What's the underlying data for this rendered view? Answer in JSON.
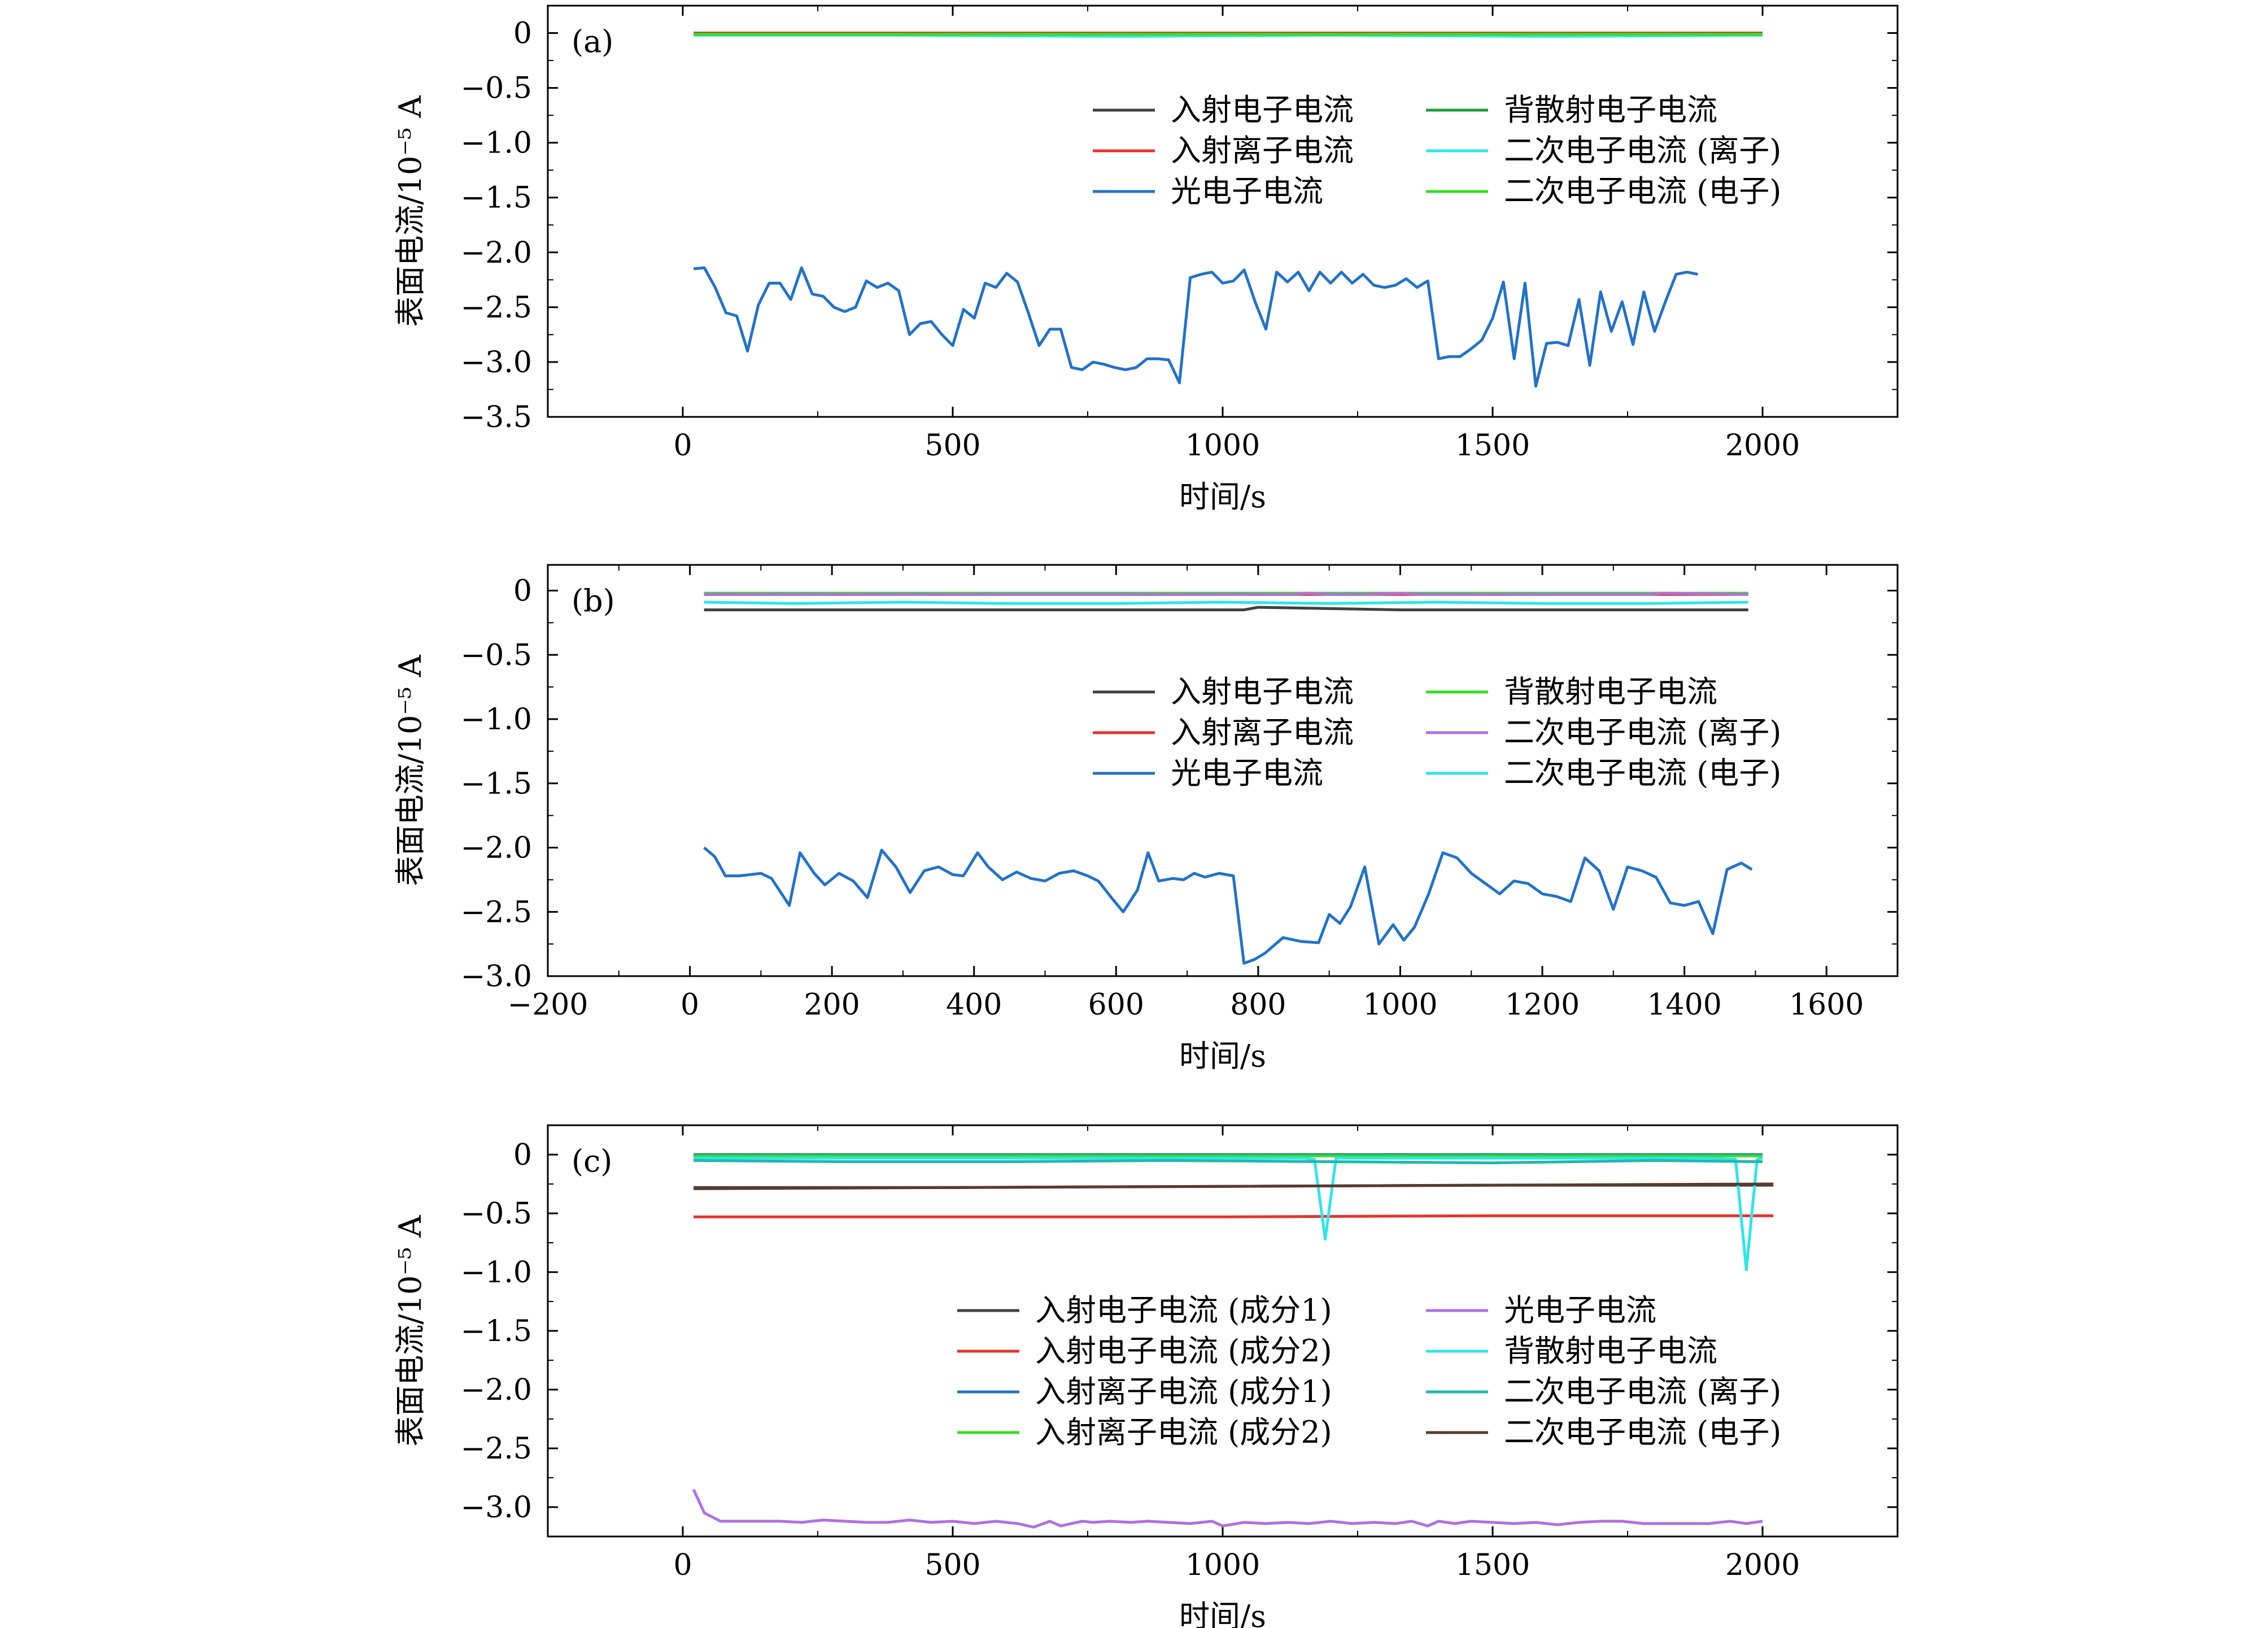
{
  "chart_data": [
    {
      "panel": "(a)",
      "type": "line",
      "xlabel": "时间/s",
      "ylabel": "表面电流/10⁻⁵ A",
      "xlim": [
        -250,
        2250
      ],
      "ylim": [
        -3.5,
        0.25
      ],
      "xticks": [
        0,
        500,
        1000,
        1500,
        2000
      ],
      "xtick_labels": [
        "0",
        "500",
        "1000",
        "1500",
        "2000"
      ],
      "yticks": [
        0,
        -0.5,
        -1.0,
        -1.5,
        -2.0,
        -2.5,
        -3.0,
        -3.5
      ],
      "ytick_labels": [
        "0",
        "−0.5",
        "−1.0",
        "−1.5",
        "−2.0",
        "−2.5",
        "−3.0",
        "−3.5"
      ],
      "legend_position": "upper-right",
      "series": [
        {
          "name": "入射电子电流",
          "color": "#404040",
          "x": [
            20,
            500,
            1000,
            1500,
            2000
          ],
          "values": [
            0,
            0,
            0,
            0,
            0
          ]
        },
        {
          "name": "入射离子电流",
          "color": "#e8322b",
          "x": [
            20,
            500,
            1000,
            1500,
            2000
          ],
          "values": [
            0,
            0,
            0,
            0,
            0
          ]
        },
        {
          "name": "光电子电流",
          "color": "#2272c8",
          "x": [
            20,
            40,
            60,
            80,
            100,
            120,
            140,
            160,
            180,
            200,
            220,
            240,
            260,
            280,
            300,
            320,
            340,
            360,
            380,
            400,
            420,
            440,
            460,
            480,
            500,
            520,
            540,
            560,
            580,
            600,
            620,
            640,
            660,
            680,
            700,
            720,
            740,
            760,
            780,
            800,
            820,
            840,
            860,
            880,
            900,
            920,
            940,
            960,
            980,
            1000,
            1020,
            1040,
            1060,
            1080,
            1100,
            1120,
            1140,
            1160,
            1180,
            1200,
            1220,
            1240,
            1260,
            1280,
            1300,
            1320,
            1340,
            1360,
            1380,
            1400,
            1420,
            1440,
            1460,
            1480,
            1500,
            1520,
            1540,
            1560,
            1580,
            1600,
            1620,
            1640,
            1660,
            1680,
            1700,
            1720,
            1740,
            1760,
            1780,
            1800,
            1820,
            1840,
            1860,
            1880
          ],
          "values": [
            -2.15,
            -2.14,
            -2.32,
            -2.55,
            -2.58,
            -2.9,
            -2.48,
            -2.28,
            -2.28,
            -2.43,
            -2.14,
            -2.38,
            -2.4,
            -2.5,
            -2.54,
            -2.5,
            -2.26,
            -2.32,
            -2.28,
            -2.35,
            -2.75,
            -2.65,
            -2.63,
            -2.75,
            -2.85,
            -2.52,
            -2.6,
            -2.28,
            -2.32,
            -2.19,
            -2.27,
            -2.55,
            -2.85,
            -2.7,
            -2.7,
            -3.05,
            -3.07,
            -3.0,
            -3.02,
            -3.05,
            -3.07,
            -3.05,
            -2.97,
            -2.97,
            -2.98,
            -3.19,
            -2.23,
            -2.2,
            -2.18,
            -2.28,
            -2.26,
            -2.16,
            -2.45,
            -2.7,
            -2.18,
            -2.27,
            -2.18,
            -2.35,
            -2.18,
            -2.28,
            -2.18,
            -2.28,
            -2.2,
            -2.3,
            -2.32,
            -2.3,
            -2.24,
            -2.32,
            -2.26,
            -2.97,
            -2.95,
            -2.95,
            -2.88,
            -2.8,
            -2.6,
            -2.27,
            -2.97,
            -2.28,
            -3.22,
            -2.83,
            -2.82,
            -2.85,
            -2.43,
            -3.03,
            -2.36,
            -2.72,
            -2.45,
            -2.84,
            -2.36,
            -2.72,
            -2.45,
            -2.2,
            -2.18,
            -2.2
          ]
        },
        {
          "name": "背散射电子电流",
          "color": "#1f9e3e",
          "x": [
            20,
            500,
            1000,
            1500,
            2000
          ],
          "values": [
            -0.01,
            -0.01,
            -0.01,
            -0.01,
            -0.01
          ]
        },
        {
          "name": "二次电子电流 (离子)",
          "color": "#2ee6e6",
          "x": [
            20,
            400,
            800,
            1200,
            1600,
            2000
          ],
          "values": [
            -0.02,
            -0.02,
            -0.03,
            -0.02,
            -0.03,
            -0.02
          ]
        },
        {
          "name": "二次电子电流 (电子)",
          "color": "#33dd22",
          "x": [
            20,
            500,
            1000,
            1500,
            2000
          ],
          "values": [
            -0.01,
            -0.01,
            -0.01,
            -0.01,
            -0.01
          ]
        }
      ]
    },
    {
      "panel": "(b)",
      "type": "line",
      "xlabel": "时间/s",
      "ylabel": "表面电流/10⁻⁵ A",
      "xlim": [
        -200,
        1700
      ],
      "ylim": [
        -3.0,
        0.2
      ],
      "xticks": [
        -200,
        0,
        200,
        400,
        600,
        800,
        1000,
        1200,
        1400,
        1600
      ],
      "xtick_labels": [
        "−200",
        "0",
        "200",
        "400",
        "600",
        "800",
        "1000",
        "1200",
        "1400",
        "1600"
      ],
      "yticks": [
        0,
        -0.5,
        -1.0,
        -1.5,
        -2.0,
        -2.5,
        -3.0
      ],
      "ytick_labels": [
        "0",
        "−0.5",
        "−1.0",
        "−1.5",
        "−2.0",
        "−2.5",
        "−3.0"
      ],
      "legend_position": "upper-right",
      "series": [
        {
          "name": "入射电子电流",
          "color": "#404040",
          "x": [
            20,
            400,
            780,
            800,
            1000,
            1400,
            1490
          ],
          "values": [
            -0.15,
            -0.15,
            -0.15,
            -0.13,
            -0.15,
            -0.15,
            -0.15
          ]
        },
        {
          "name": "入射离子电流",
          "color": "#e8322b",
          "x": [
            20,
            1490
          ],
          "values": [
            -0.03,
            -0.03
          ]
        },
        {
          "name": "光电子电流",
          "color": "#2272c8",
          "x": [
            20,
            35,
            50,
            70,
            85,
            100,
            115,
            140,
            155,
            175,
            190,
            210,
            230,
            250,
            270,
            290,
            310,
            330,
            350,
            370,
            385,
            405,
            420,
            440,
            460,
            480,
            500,
            520,
            540,
            560,
            575,
            595,
            610,
            630,
            645,
            660,
            680,
            695,
            710,
            725,
            745,
            765,
            780,
            795,
            810,
            835,
            860,
            885,
            900,
            915,
            930,
            950,
            970,
            990,
            1005,
            1020,
            1040,
            1060,
            1080,
            1100,
            1120,
            1140,
            1160,
            1180,
            1200,
            1220,
            1240,
            1260,
            1280,
            1300,
            1320,
            1340,
            1360,
            1380,
            1400,
            1420,
            1440,
            1460,
            1480,
            1495
          ],
          "values": [
            -2.0,
            -2.07,
            -2.22,
            -2.22,
            -2.21,
            -2.2,
            -2.24,
            -2.45,
            -2.04,
            -2.2,
            -2.29,
            -2.2,
            -2.26,
            -2.39,
            -2.02,
            -2.15,
            -2.35,
            -2.18,
            -2.15,
            -2.21,
            -2.22,
            -2.04,
            -2.15,
            -2.25,
            -2.19,
            -2.24,
            -2.26,
            -2.2,
            -2.18,
            -2.22,
            -2.26,
            -2.4,
            -2.5,
            -2.33,
            -2.04,
            -2.26,
            -2.24,
            -2.25,
            -2.2,
            -2.23,
            -2.2,
            -2.22,
            -2.9,
            -2.87,
            -2.82,
            -2.7,
            -2.73,
            -2.74,
            -2.52,
            -2.59,
            -2.46,
            -2.15,
            -2.75,
            -2.6,
            -2.72,
            -2.62,
            -2.36,
            -2.04,
            -2.08,
            -2.2,
            -2.28,
            -2.36,
            -2.26,
            -2.28,
            -2.36,
            -2.38,
            -2.42,
            -2.08,
            -2.18,
            -2.48,
            -2.15,
            -2.18,
            -2.23,
            -2.43,
            -2.45,
            -2.42,
            -2.67,
            -2.17,
            -2.12,
            -2.17
          ]
        },
        {
          "name": "背散射电子电流",
          "color": "#33dd22",
          "x": [
            20,
            1490
          ],
          "values": [
            -0.02,
            -0.02
          ]
        },
        {
          "name": "二次电子电流 (离子)",
          "color": "#b070e0",
          "x": [
            20,
            850,
            870,
            900,
            950,
            1000,
            1030,
            1350,
            1370,
            1490
          ],
          "values": [
            -0.03,
            -0.03,
            -0.02,
            -0.03,
            -0.03,
            -0.02,
            -0.03,
            -0.03,
            -0.02,
            -0.03
          ]
        },
        {
          "name": "二次电子电流 (电子)",
          "color": "#2ee6e6",
          "x": [
            20,
            150,
            300,
            450,
            600,
            750,
            900,
            1050,
            1200,
            1350,
            1490
          ],
          "values": [
            -0.09,
            -0.1,
            -0.09,
            -0.1,
            -0.1,
            -0.09,
            -0.1,
            -0.09,
            -0.1,
            -0.1,
            -0.09
          ]
        }
      ]
    },
    {
      "panel": "(c)",
      "type": "line",
      "xlabel": "时间/s",
      "ylabel": "表面电流/10⁻⁵ A",
      "xlim": [
        -250,
        2250
      ],
      "ylim": [
        -3.25,
        0.25
      ],
      "xticks": [
        0,
        500,
        1000,
        1500,
        2000
      ],
      "xtick_labels": [
        "0",
        "500",
        "1000",
        "1500",
        "2000"
      ],
      "yticks": [
        0,
        -0.5,
        -1.0,
        -1.5,
        -2.0,
        -2.5,
        -3.0
      ],
      "ytick_labels": [
        "0",
        "−0.5",
        "−1.0",
        "−1.5",
        "−2.0",
        "−2.5",
        "−3.0"
      ],
      "legend_position": "center-right",
      "series": [
        {
          "name": "入射电子电流 (成分1)",
          "color": "#404040",
          "x": [
            20,
            500,
            1000,
            1500,
            2020
          ],
          "values": [
            -0.29,
            -0.28,
            -0.27,
            -0.26,
            -0.26
          ]
        },
        {
          "name": "入射电子电流 (成分2)",
          "color": "#e8322b",
          "x": [
            20,
            500,
            1000,
            1500,
            2020
          ],
          "values": [
            -0.53,
            -0.53,
            -0.53,
            -0.52,
            -0.52
          ]
        },
        {
          "name": "入射离子电流 (成分1)",
          "color": "#2272c8",
          "x": [
            20,
            2000
          ],
          "values": [
            0.0,
            0.0
          ]
        },
        {
          "name": "入射离子电流 (成分2)",
          "color": "#33dd22",
          "x": [
            20,
            2000
          ],
          "values": [
            -0.01,
            -0.01
          ]
        },
        {
          "name": "光电子电流",
          "color": "#b070e0",
          "x": [
            20,
            40,
            70,
            100,
            140,
            180,
            220,
            260,
            300,
            340,
            380,
            420,
            460,
            500,
            540,
            580,
            620,
            650,
            680,
            700,
            720,
            740,
            760,
            790,
            830,
            860,
            900,
            940,
            980,
            1000,
            1040,
            1080,
            1120,
            1160,
            1200,
            1240,
            1280,
            1320,
            1350,
            1380,
            1400,
            1430,
            1460,
            1500,
            1540,
            1580,
            1620,
            1660,
            1700,
            1740,
            1780,
            1820,
            1860,
            1900,
            1940,
            1970,
            2000
          ],
          "values": [
            -2.85,
            -3.05,
            -3.12,
            -3.12,
            -3.12,
            -3.12,
            -3.13,
            -3.11,
            -3.12,
            -3.13,
            -3.13,
            -3.11,
            -3.13,
            -3.12,
            -3.14,
            -3.12,
            -3.14,
            -3.17,
            -3.12,
            -3.16,
            -3.14,
            -3.12,
            -3.13,
            -3.12,
            -3.13,
            -3.12,
            -3.13,
            -3.14,
            -3.12,
            -3.16,
            -3.13,
            -3.14,
            -3.13,
            -3.14,
            -3.12,
            -3.14,
            -3.13,
            -3.14,
            -3.12,
            -3.16,
            -3.12,
            -3.14,
            -3.12,
            -3.13,
            -3.14,
            -3.13,
            -3.15,
            -3.13,
            -3.12,
            -3.12,
            -3.14,
            -3.14,
            -3.14,
            -3.14,
            -3.12,
            -3.14,
            -3.12
          ]
        },
        {
          "name": "背散射电子电流",
          "color": "#2ee6e6",
          "x": [
            20,
            1150,
            1170,
            1190,
            1210,
            1900,
            1950,
            1970,
            1990,
            2000
          ],
          "values": [
            -0.03,
            -0.03,
            -0.04,
            -0.72,
            -0.03,
            -0.03,
            -0.04,
            -0.98,
            -0.04,
            -0.03
          ]
        },
        {
          "name": "二次电子电流 (离子)",
          "color": "#20b8b0",
          "x": [
            20,
            300,
            600,
            900,
            1200,
            1500,
            1800,
            2000
          ],
          "values": [
            -0.05,
            -0.06,
            -0.06,
            -0.05,
            -0.06,
            -0.07,
            -0.05,
            -0.06
          ]
        },
        {
          "name": "二次电子电流 (电子)",
          "color": "#5a3a30",
          "x": [
            20,
            500,
            1000,
            1500,
            2020
          ],
          "values": [
            -0.28,
            -0.28,
            -0.27,
            -0.26,
            -0.25
          ]
        }
      ]
    }
  ]
}
